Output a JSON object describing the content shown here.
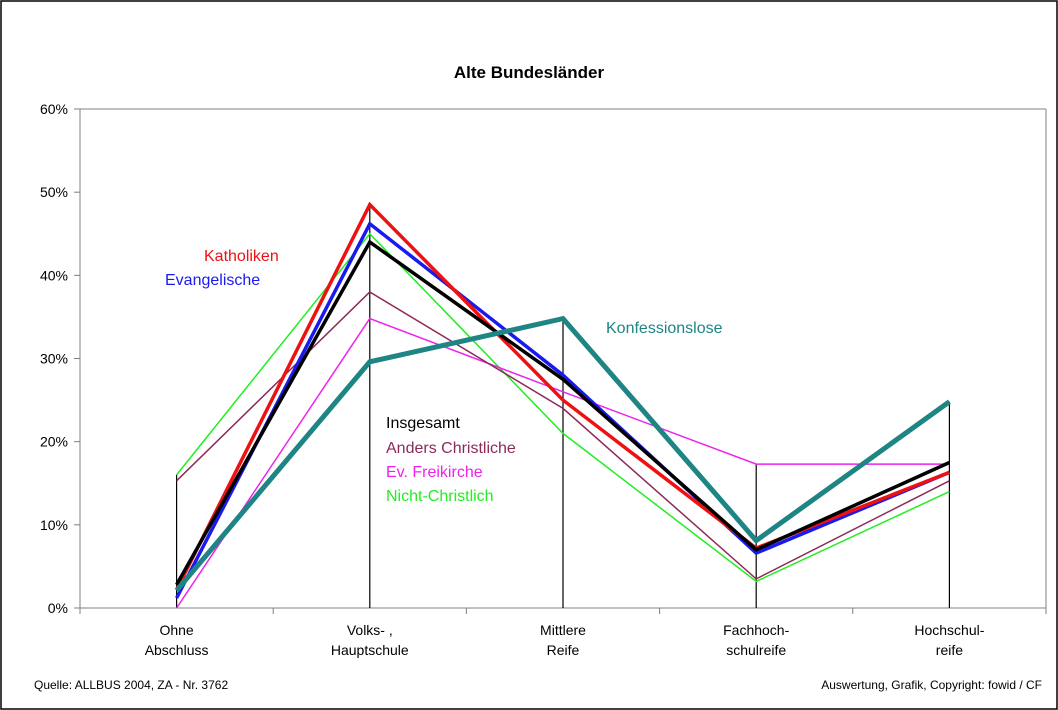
{
  "chart_data": {
    "type": "line",
    "title": "Alte Bundesländer",
    "categories": [
      [
        "Ohne",
        "Abschluss"
      ],
      [
        "Volks- ,",
        "Hauptschule"
      ],
      [
        "Mittlere",
        "Reife"
      ],
      [
        "Fachhoch-",
        "schulreife"
      ],
      [
        "Hochschul-",
        "reife"
      ]
    ],
    "y_ticks": [
      "0%",
      "10%",
      "20%",
      "30%",
      "40%",
      "50%",
      "60%"
    ],
    "ylim": [
      0,
      60
    ],
    "grid": false,
    "series": [
      {
        "name": "Nicht-Christlich",
        "color": "#22ee22",
        "width": 1.5,
        "values": [
          16,
          45,
          21,
          3.2,
          14
        ]
      },
      {
        "name": "Ev. Freikirche",
        "color": "#ee22ee",
        "width": 1.5,
        "values": [
          0,
          34.8,
          26,
          17.3,
          17.3
        ]
      },
      {
        "name": "Anders Christliche",
        "color": "#8b2a5a",
        "width": 1.5,
        "values": [
          15.3,
          38,
          24,
          3.5,
          15.3
        ]
      },
      {
        "name": "Evangelische",
        "color": "#1a1aee",
        "width": 3.5,
        "values": [
          1.2,
          46.2,
          28,
          6.6,
          16.3
        ]
      },
      {
        "name": "Katholiken",
        "color": "#ee1111",
        "width": 3.5,
        "values": [
          2.2,
          48.5,
          25,
          7.2,
          16.3
        ]
      },
      {
        "name": "Insgesamt",
        "color": "#000000",
        "width": 3.5,
        "values": [
          2.8,
          44,
          27.5,
          7,
          17.5
        ]
      },
      {
        "name": "Konfessionslose",
        "color": "#1e8484",
        "width": 5,
        "values": [
          2.1,
          29.6,
          34.8,
          8.1,
          24.8
        ]
      }
    ],
    "drop_lines": [
      16,
      48.5,
      34.8,
      17.3,
      24.8
    ],
    "labels": [
      {
        "text": "Katholiken",
        "color": "#ee1111"
      },
      {
        "text": "Evangelische",
        "color": "#1a1aee"
      },
      {
        "text": "Konfessionslose",
        "color": "#1e8484"
      },
      {
        "text": "Insgesamt",
        "color": "#000000"
      },
      {
        "text": "Anders Christliche",
        "color": "#8b2a5a"
      },
      {
        "text": "Ev. Freikirche",
        "color": "#ee22ee"
      },
      {
        "text": "Nicht-Christlich",
        "color": "#22ee22"
      }
    ]
  },
  "footer": {
    "source": "Quelle: ALLBUS 2004, ZA - Nr. 3762",
    "copyright": "Auswertung, Grafik, Copyright: fowid / CF"
  }
}
